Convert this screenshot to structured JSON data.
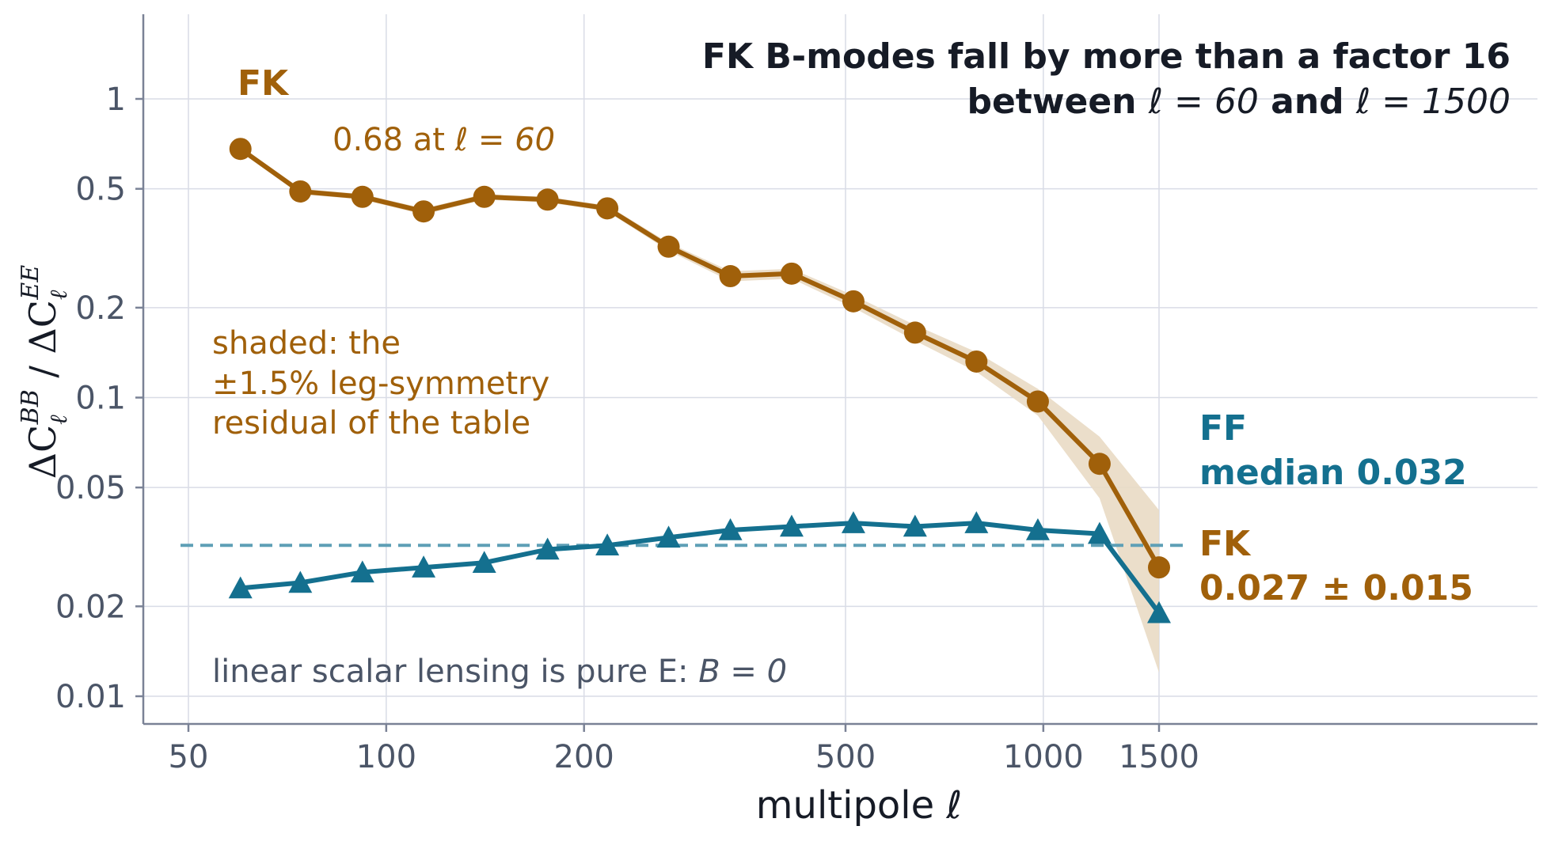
{
  "chart_data": {
    "type": "line",
    "title_line1": "FK B-modes fall by more than a factor 16",
    "title_line2_parts": [
      "between ",
      "ℓ = 60",
      " and ",
      "ℓ = 1500"
    ],
    "xlabel": "multipole  ℓ",
    "ylabel": "ΔC_ℓ^BB / ΔC_ℓ^EE",
    "xscale": "log",
    "yscale": "log",
    "xlim": [
      48,
      3000
    ],
    "ylim": [
      0.008,
      1.9
    ],
    "xticks": [
      50,
      100,
      200,
      500,
      1000,
      1500
    ],
    "xtick_labels": [
      "50",
      "100",
      "200",
      "500",
      "1000",
      "1500"
    ],
    "yticks": [
      0.01,
      0.02,
      0.05,
      0.1,
      0.2,
      0.5,
      1
    ],
    "ytick_labels": [
      "0.01",
      "0.02",
      "0.05",
      "0.1",
      "0.2",
      "0.5",
      "1"
    ],
    "grid": true,
    "x": [
      60,
      74,
      92,
      114,
      141,
      176,
      217,
      269,
      334,
      414,
      514,
      638,
      791,
      981,
      1218,
      1500
    ],
    "series": [
      {
        "name": "FK",
        "color": "#a0600a",
        "marker": "circle",
        "values": [
          0.68,
          0.49,
          0.47,
          0.42,
          0.47,
          0.46,
          0.43,
          0.32,
          0.255,
          0.26,
          0.21,
          0.165,
          0.132,
          0.097,
          0.06,
          0.027
        ],
        "band_low": [
          0.67,
          0.48,
          0.46,
          0.41,
          0.46,
          0.45,
          0.42,
          0.31,
          0.245,
          0.25,
          0.2,
          0.155,
          0.122,
          0.087,
          0.046,
          0.012
        ],
        "band_high": [
          0.69,
          0.5,
          0.48,
          0.43,
          0.48,
          0.47,
          0.44,
          0.33,
          0.265,
          0.27,
          0.22,
          0.175,
          0.142,
          0.107,
          0.074,
          0.042
        ]
      },
      {
        "name": "FF",
        "color": "#14708f",
        "marker": "triangle",
        "values": [
          0.023,
          0.024,
          0.026,
          0.027,
          0.028,
          0.031,
          0.032,
          0.034,
          0.036,
          0.037,
          0.038,
          0.037,
          0.038,
          0.036,
          0.035,
          0.019
        ]
      }
    ],
    "ff_median": 0.032,
    "annotations": {
      "fk_series_label": "FK",
      "fk_start_value": "0.68 at ",
      "fk_start_math": "ℓ = 60",
      "shaded_line1": "shaded: the",
      "shaded_line2": "±1.5% leg-symmetry",
      "shaded_line3": "residual of the table",
      "ff_label": "FF",
      "ff_median_label": "median 0.032",
      "fk_end_label": "FK",
      "fk_end_value": "0.027 ± 0.015",
      "lensing_note": "linear scalar lensing is pure E:  ",
      "lensing_math": "B = 0"
    },
    "colors": {
      "fk": "#a0600a",
      "fk_band": "#e9dac4",
      "ff": "#14708f",
      "ff_median_line": "#5e9fb6"
    }
  }
}
